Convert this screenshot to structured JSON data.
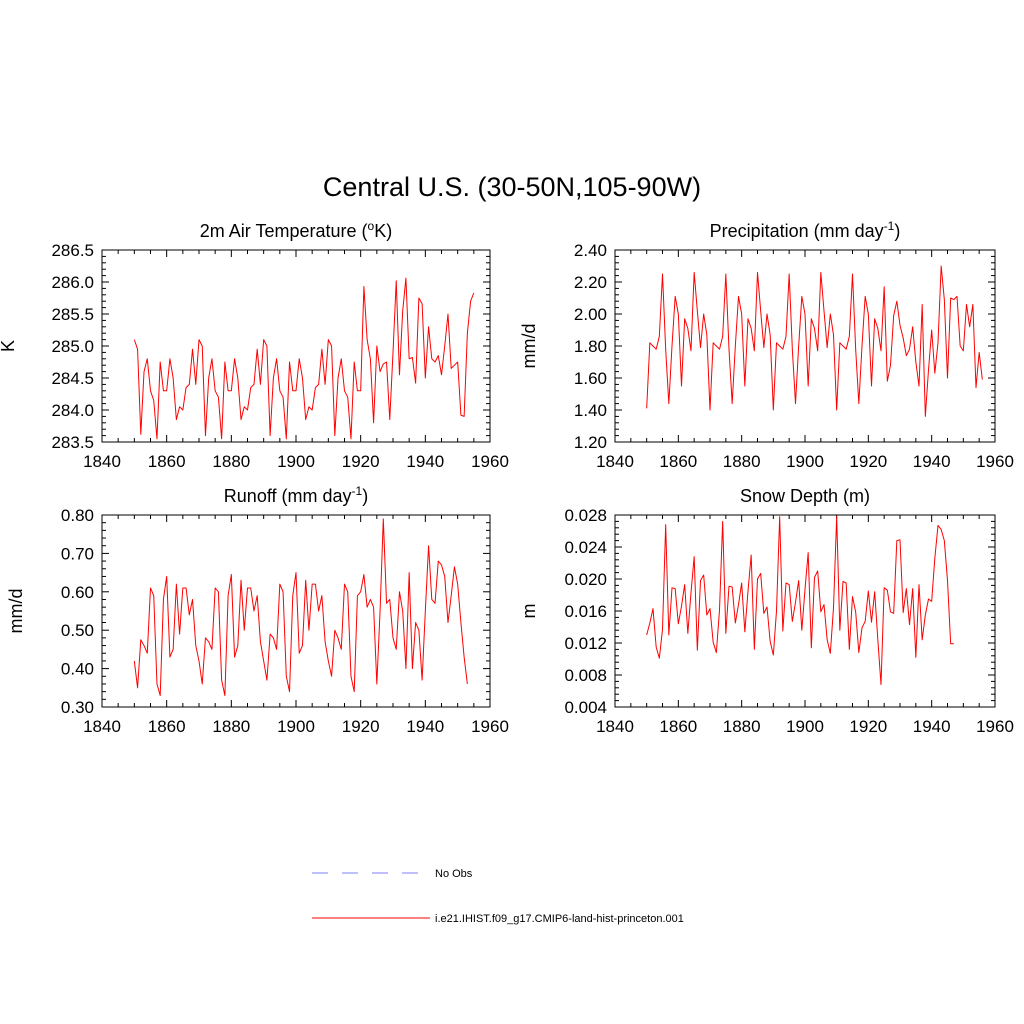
{
  "figure": {
    "title": "Central U.S. (30-50N,105-90W)"
  },
  "legend": {
    "placement": "bottom-center",
    "entries": [
      {
        "label": "No Obs",
        "color": "#9999ff",
        "style": "dashed"
      },
      {
        "label": "i.e21.IHIST.f09_g17.CMIP6-land-hist-princeton.001",
        "color": "#ff0000",
        "style": "solid"
      }
    ]
  },
  "chart_data": [
    {
      "id": "tas",
      "type": "line",
      "title": "2m Air Temperature (",
      "title_sup": "o",
      "title_tail": "K)",
      "xlabel": "",
      "ylabel": "K",
      "xlim": [
        1840,
        1960
      ],
      "ylim": [
        283.5,
        286.5
      ],
      "xticks": [
        1840,
        1860,
        1880,
        1900,
        1920,
        1940,
        1960
      ],
      "yticks": [
        283.5,
        284.0,
        284.5,
        285.0,
        285.5,
        286.0,
        286.5
      ],
      "ytick_labels": [
        "283.5",
        "284.0",
        "284.5",
        "285.0",
        "285.5",
        "286.0",
        "286.5"
      ],
      "grid": false,
      "series": [
        {
          "color": "#ff0000",
          "x_start": 1850,
          "x_step": 1,
          "values": [
            285.1,
            284.95,
            283.62,
            284.6,
            284.8,
            284.3,
            284.15,
            283.55,
            284.75,
            284.3,
            284.3,
            284.8,
            284.5,
            283.85,
            284.05,
            284.0,
            284.35,
            284.4,
            284.95,
            284.4,
            285.1,
            285.0,
            283.6,
            284.5,
            284.8,
            284.3,
            284.2,
            283.55,
            284.75,
            284.3,
            284.3,
            284.8,
            284.5,
            283.85,
            284.05,
            284.0,
            284.35,
            284.4,
            284.95,
            284.4,
            285.1,
            285.0,
            283.6,
            284.5,
            284.8,
            284.3,
            284.2,
            283.55,
            284.75,
            284.3,
            284.3,
            284.8,
            284.5,
            283.85,
            284.05,
            284.0,
            284.35,
            284.4,
            284.95,
            284.4,
            285.1,
            285.0,
            283.6,
            284.5,
            284.8,
            284.3,
            284.2,
            283.55,
            284.75,
            284.3,
            284.3,
            285.93,
            285.1,
            284.8,
            283.8,
            285.0,
            284.6,
            284.72,
            284.75,
            283.85,
            284.9,
            286.02,
            284.55,
            285.55,
            286.06,
            284.8,
            284.82,
            284.42,
            285.75,
            285.66,
            284.5,
            285.3,
            284.8,
            284.75,
            284.85,
            284.55,
            285.0,
            285.5,
            284.65,
            284.7,
            284.75,
            283.92,
            283.9,
            285.2,
            285.7,
            285.83
          ]
        }
      ]
    },
    {
      "id": "prect",
      "type": "line",
      "title": "Precipitation (mm day",
      "title_sup": "-1",
      "title_tail": ")",
      "xlabel": "",
      "ylabel": "mm/d",
      "xlim": [
        1840,
        1960
      ],
      "ylim": [
        1.2,
        2.4
      ],
      "xticks": [
        1840,
        1860,
        1880,
        1900,
        1920,
        1940,
        1960
      ],
      "yticks": [
        1.2,
        1.4,
        1.6,
        1.8,
        2.0,
        2.2,
        2.4
      ],
      "ytick_labels": [
        "1.20",
        "1.40",
        "1.60",
        "1.80",
        "2.00",
        "2.20",
        "2.40"
      ],
      "grid": false,
      "series": [
        {
          "color": "#ff0000",
          "x_start": 1850,
          "x_step": 1,
          "values": [
            1.41,
            1.82,
            1.8,
            1.78,
            1.86,
            2.25,
            1.78,
            1.44,
            1.8,
            2.11,
            2.0,
            1.55,
            1.97,
            1.91,
            1.77,
            2.26,
            2.02,
            1.79,
            2.0,
            1.87,
            1.4,
            1.82,
            1.8,
            1.78,
            1.86,
            2.25,
            1.78,
            1.44,
            1.8,
            2.11,
            2.0,
            1.55,
            1.97,
            1.91,
            1.77,
            2.26,
            2.02,
            1.79,
            2.0,
            1.87,
            1.4,
            1.82,
            1.8,
            1.78,
            1.86,
            2.25,
            1.78,
            1.44,
            1.8,
            2.11,
            2.0,
            1.55,
            1.97,
            1.91,
            1.77,
            2.26,
            2.02,
            1.79,
            2.0,
            1.87,
            1.4,
            1.82,
            1.8,
            1.78,
            1.86,
            2.25,
            1.78,
            1.44,
            1.8,
            2.11,
            2.0,
            1.55,
            1.97,
            1.91,
            1.77,
            2.17,
            1.58,
            1.68,
            1.99,
            2.08,
            1.93,
            1.85,
            1.74,
            1.78,
            1.92,
            1.7,
            1.55,
            2.06,
            1.36,
            1.65,
            1.9,
            1.63,
            1.82,
            2.3,
            2.09,
            1.6,
            2.1,
            2.09,
            2.11,
            1.8,
            1.77,
            2.06,
            1.92,
            2.06,
            1.54,
            1.76,
            1.59
          ]
        }
      ]
    },
    {
      "id": "runoff",
      "type": "line",
      "title": "Runoff (mm day",
      "title_sup": "-1",
      "title_tail": ")",
      "xlabel": "",
      "ylabel": "mm/d",
      "xlim": [
        1840,
        1960
      ],
      "ylim": [
        0.3,
        0.8
      ],
      "xticks": [
        1840,
        1860,
        1880,
        1900,
        1920,
        1940,
        1960
      ],
      "yticks": [
        0.3,
        0.4,
        0.5,
        0.6,
        0.7,
        0.8
      ],
      "ytick_labels": [
        "0.30",
        "0.40",
        "0.50",
        "0.60",
        "0.70",
        "0.80"
      ],
      "grid": false,
      "series": [
        {
          "color": "#ff0000",
          "x_start": 1850,
          "x_step": 1,
          "values": [
            0.42,
            0.35,
            0.475,
            0.46,
            0.44,
            0.61,
            0.59,
            0.36,
            0.33,
            0.58,
            0.64,
            0.43,
            0.45,
            0.62,
            0.49,
            0.61,
            0.61,
            0.54,
            0.58,
            0.46,
            0.42,
            0.36,
            0.48,
            0.47,
            0.45,
            0.61,
            0.6,
            0.37,
            0.33,
            0.59,
            0.645,
            0.43,
            0.46,
            0.63,
            0.5,
            0.61,
            0.61,
            0.55,
            0.59,
            0.47,
            0.42,
            0.37,
            0.49,
            0.48,
            0.45,
            0.62,
            0.6,
            0.38,
            0.34,
            0.59,
            0.65,
            0.44,
            0.46,
            0.63,
            0.5,
            0.62,
            0.62,
            0.55,
            0.59,
            0.47,
            0.42,
            0.38,
            0.5,
            0.48,
            0.45,
            0.62,
            0.6,
            0.38,
            0.34,
            0.59,
            0.6,
            0.645,
            0.56,
            0.58,
            0.56,
            0.36,
            0.55,
            0.79,
            0.57,
            0.58,
            0.48,
            0.45,
            0.6,
            0.55,
            0.4,
            0.65,
            0.4,
            0.52,
            0.5,
            0.37,
            0.55,
            0.72,
            0.58,
            0.57,
            0.68,
            0.67,
            0.64,
            0.52,
            0.59,
            0.665,
            0.62,
            0.52,
            0.43,
            0.36
          ]
        }
      ]
    },
    {
      "id": "snowdp",
      "type": "line",
      "title": "Snow Depth (m)",
      "title_sup": "",
      "title_tail": "",
      "xlabel": "",
      "ylabel": "m",
      "xlim": [
        1840,
        1960
      ],
      "ylim": [
        0.004,
        0.028
      ],
      "xticks": [
        1840,
        1860,
        1880,
        1900,
        1920,
        1940,
        1960
      ],
      "yticks": [
        0.004,
        0.008,
        0.012,
        0.016,
        0.02,
        0.024,
        0.028
      ],
      "ytick_labels": [
        "0.004",
        "0.008",
        "0.012",
        "0.016",
        "0.020",
        "0.024",
        "0.028"
      ],
      "grid": false,
      "series": [
        {
          "color": "#ff0000",
          "x_start": 1850,
          "x_step": 1,
          "values": [
            0.013,
            0.0145,
            0.0163,
            0.0115,
            0.0101,
            0.0137,
            0.0268,
            0.013,
            0.0189,
            0.0188,
            0.0144,
            0.0166,
            0.0193,
            0.0132,
            0.0183,
            0.0228,
            0.0111,
            0.0198,
            0.0205,
            0.0155,
            0.0163,
            0.0121,
            0.0108,
            0.0161,
            0.0272,
            0.0132,
            0.0191,
            0.019,
            0.0145,
            0.0168,
            0.0195,
            0.0134,
            0.0185,
            0.023,
            0.0112,
            0.02,
            0.0207,
            0.0157,
            0.0165,
            0.0122,
            0.0105,
            0.016,
            0.0278,
            0.0135,
            0.0195,
            0.0193,
            0.0147,
            0.0171,
            0.0198,
            0.0136,
            0.0187,
            0.0233,
            0.0114,
            0.0202,
            0.021,
            0.0159,
            0.0168,
            0.0124,
            0.0107,
            0.0164,
            0.0278,
            0.0136,
            0.0197,
            0.0195,
            0.0112,
            0.0178,
            0.0159,
            0.0108,
            0.0139,
            0.0147,
            0.0185,
            0.0146,
            0.0184,
            0.0124,
            0.0068,
            0.0189,
            0.0186,
            0.0159,
            0.0157,
            0.0248,
            0.0249,
            0.0158,
            0.0188,
            0.0143,
            0.0188,
            0.0102,
            0.0193,
            0.0124,
            0.0155,
            0.0175,
            0.0172,
            0.0226,
            0.0267,
            0.0262,
            0.0248,
            0.0198,
            0.0119,
            0.0119
          ]
        }
      ]
    }
  ]
}
